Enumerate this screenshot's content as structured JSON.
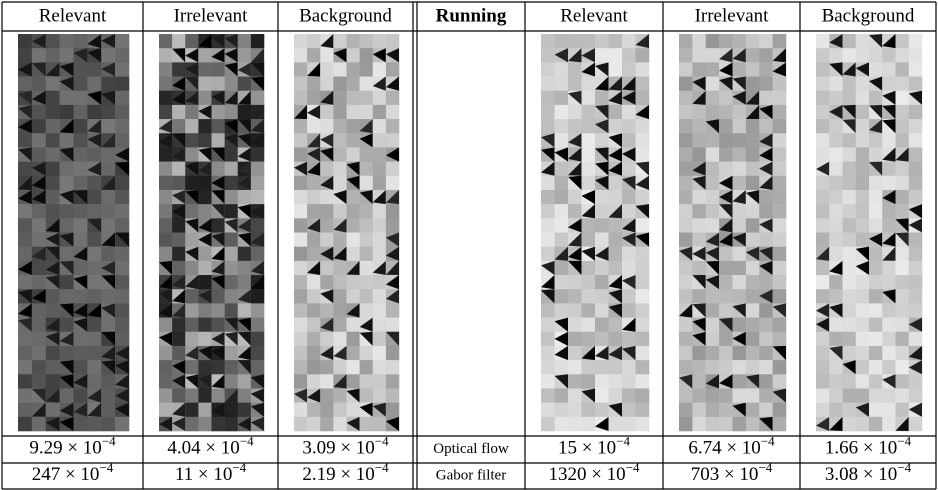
{
  "header": {
    "columns": [
      "Relevant",
      "Irrelevant",
      "Background",
      "Running",
      "Relevant",
      "Irrelevant",
      "Background"
    ]
  },
  "rows": [
    {
      "label": "Optical flow",
      "cells": [
        {
          "text": "9.29 × 10",
          "sup": "−4"
        },
        {
          "text": "4.04 × 10",
          "sup": "−4"
        },
        {
          "text": "3.09 × 10",
          "sup": "−4"
        },
        {
          "text": "15 × 10",
          "sup": "−4"
        },
        {
          "text": "6.74 × 10",
          "sup": "−4"
        },
        {
          "text": "1.66 × 10",
          "sup": "−4"
        }
      ]
    },
    {
      "label": "Gabor filter",
      "cells": [
        {
          "text": "247 × 10",
          "sup": "−4"
        },
        {
          "text": "11 × 10",
          "sup": "−4"
        },
        {
          "text": "2.19 × 10",
          "sup": "−4"
        },
        {
          "text": "1320 × 10",
          "sup": "−4"
        },
        {
          "text": "703 × 10",
          "sup": "−4"
        },
        {
          "text": "3.08 × 10",
          "sup": "−4"
        }
      ]
    }
  ]
}
